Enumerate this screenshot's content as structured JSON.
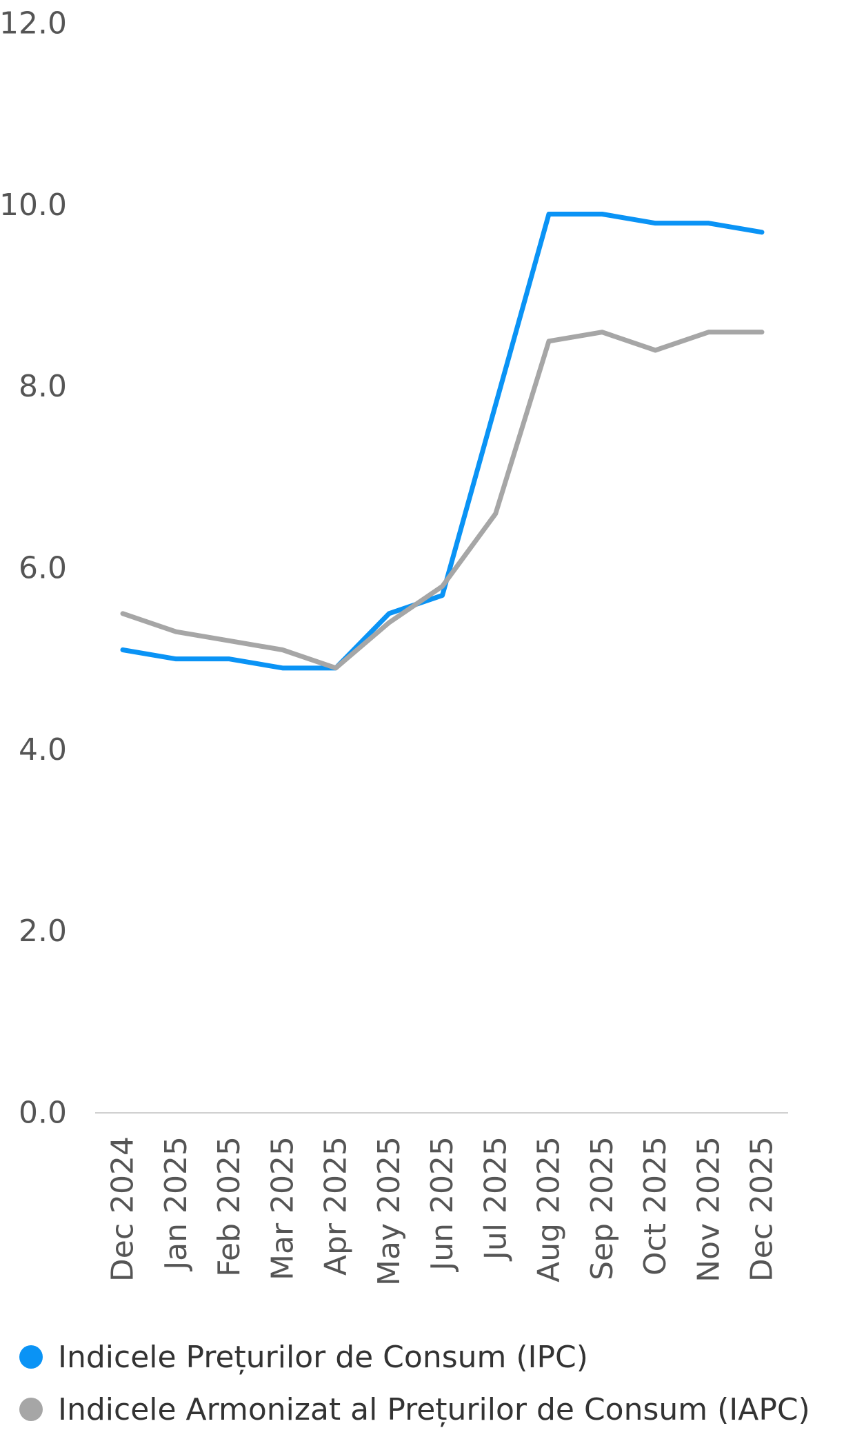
{
  "chart_data": {
    "type": "line",
    "categories": [
      "Dec 2024",
      "Jan 2025",
      "Feb 2025",
      "Mar 2025",
      "Apr 2025",
      "May 2025",
      "Jun 2025",
      "Jul 2025",
      "Aug 2025",
      "Sep 2025",
      "Oct 2025",
      "Nov 2025",
      "Dec 2025"
    ],
    "series": [
      {
        "name": "Indicele Prețurilor de Consum (IPC)",
        "color": "#0A93F5",
        "values": [
          5.1,
          5.0,
          5.0,
          4.9,
          4.9,
          5.5,
          5.7,
          7.8,
          9.9,
          9.9,
          9.8,
          9.8,
          9.7
        ]
      },
      {
        "name": "Indicele Armonizat al Prețurilor de Consum (IAPC)",
        "color": "#A6A6A6",
        "values": [
          5.5,
          5.3,
          5.2,
          5.1,
          4.9,
          5.4,
          5.8,
          6.6,
          8.5,
          8.6,
          8.4,
          8.6,
          8.6
        ]
      }
    ],
    "y_ticks": [
      "0.0",
      "2.0",
      "4.0",
      "6.0",
      "8.0",
      "10.0",
      "12.0"
    ],
    "ylim": [
      0,
      12
    ],
    "grid": false,
    "legend_position": "bottom",
    "title": "",
    "xlabel": "",
    "ylabel": ""
  }
}
